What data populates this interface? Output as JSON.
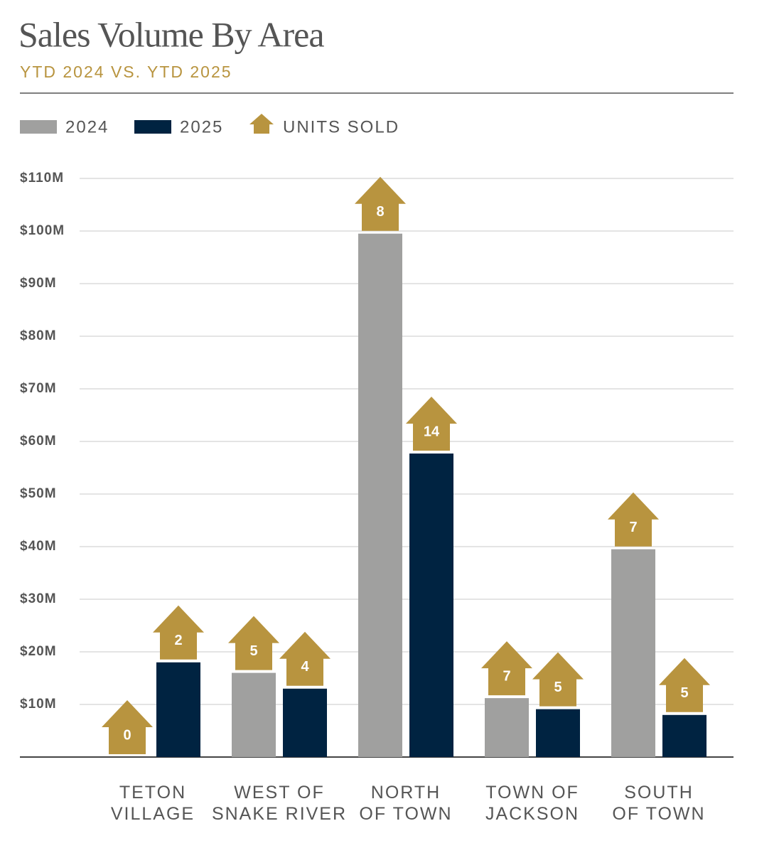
{
  "chart_data": {
    "type": "bar",
    "title": "Sales Volume By Area",
    "subtitle": "YTD 2024 VS. YTD 2025",
    "categories": [
      "TETON\nVILLAGE",
      "WEST OF\nSNAKE RIVER",
      "NORTH\nOF TOWN",
      "TOWN OF\nJACKSON",
      "SOUTH\nOF TOWN"
    ],
    "series": [
      {
        "name": "2024",
        "color": "#a0a09f",
        "values": [
          0,
          16,
          99.5,
          11.2,
          39.5
        ],
        "units": [
          0,
          5,
          8,
          7,
          7
        ]
      },
      {
        "name": "2025",
        "color": "#002341",
        "values": [
          18,
          13,
          57.7,
          9.1,
          8
        ],
        "units": [
          2,
          4,
          14,
          5,
          5
        ]
      }
    ],
    "units_legend": "UNITS SOLD",
    "units_color": "#b8943f",
    "ylim": [
      0,
      110
    ],
    "yticks": [
      {
        "value": 10,
        "label": "$10M"
      },
      {
        "value": 20,
        "label": "$20M"
      },
      {
        "value": 30,
        "label": "$30M"
      },
      {
        "value": 40,
        "label": "$40M"
      },
      {
        "value": 50,
        "label": "$50M"
      },
      {
        "value": 60,
        "label": "$60M"
      },
      {
        "value": 70,
        "label": "$70M"
      },
      {
        "value": 80,
        "label": "$80M"
      },
      {
        "value": 90,
        "label": "$90M"
      },
      {
        "value": 100,
        "label": "$100M"
      },
      {
        "value": 110,
        "label": "$110M"
      }
    ],
    "grid": true
  }
}
